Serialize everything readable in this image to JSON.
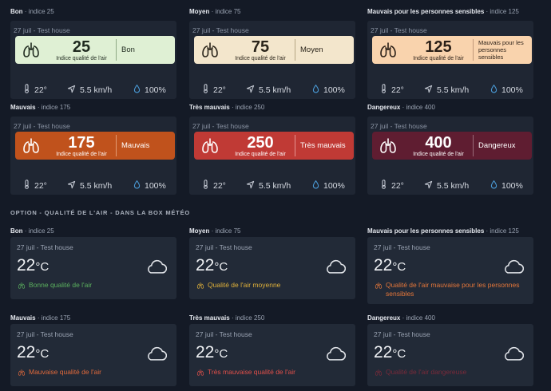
{
  "common": {
    "date": "27 juil - Test house",
    "index_caption": "Indice qualité de l'air",
    "temperature": "22°",
    "wind": "5.5 km/h",
    "humidity": "100%"
  },
  "cards": [
    {
      "label": "Bon",
      "indice": "· indice 25",
      "value": "25",
      "level": "Bon",
      "bg": "#dff0d4",
      "fg": "#1f2a1f",
      "sep": "#8faa86"
    },
    {
      "label": "Moyen",
      "indice": "· indice 75",
      "value": "75",
      "level": "Moyen",
      "bg": "#f3e6cc",
      "fg": "#2a241a",
      "sep": "#b5a684"
    },
    {
      "label": "Mauvais pour les personnes sensibles",
      "indice": "· indice 125",
      "value": "125",
      "level": "Mauvais pour les personnes sensibles",
      "bg": "#f9d3ad",
      "fg": "#2a1f17",
      "sep": "#c0987a"
    },
    {
      "label": "Mauvais",
      "indice": "· indice 175",
      "value": "175",
      "level": "Mauvais",
      "bg": "#c0521c",
      "fg": "#ffffff",
      "sep": "#e39a73"
    },
    {
      "label": "Très mauvais",
      "indice": "· indice 250",
      "value": "250",
      "level": "Très mauvais",
      "bg": "#c03a35",
      "fg": "#ffffff",
      "sep": "#e69491"
    },
    {
      "label": "Dangereux",
      "indice": "· indice 400",
      "value": "400",
      "level": "Dangereux",
      "bg": "#5f1d31",
      "fg": "#ffffff",
      "sep": "#9a6b7a"
    }
  ],
  "section_title": "OPTION - QUALITÉ DE L'AIR - DANS LA BOX MÉTÉO",
  "weather_cards": [
    {
      "label": "Bon",
      "indice": "· indice 25",
      "temp": "22",
      "unit": "°C",
      "aq_text": "Bonne qualité de l'air",
      "color": "#5bb15e"
    },
    {
      "label": "Moyen",
      "indice": "· indice 75",
      "temp": "22",
      "unit": "°C",
      "aq_text": "Qualité de l'air moyenne",
      "color": "#e0b13a"
    },
    {
      "label": "Mauvais pour les personnes sensibles",
      "indice": "· indice 125",
      "temp": "22",
      "unit": "°C",
      "aq_text": "Qualité de l'air mauvaise pour les personnes sensibles",
      "color": "#e5773a"
    },
    {
      "label": "Mauvais",
      "indice": "· indice 175",
      "temp": "22",
      "unit": "°C",
      "aq_text": "Mauvaise qualité de l'air",
      "color": "#e26a3b"
    },
    {
      "label": "Très mauvais",
      "indice": "· indice 250",
      "temp": "22",
      "unit": "°C",
      "aq_text": "Très mauvaise qualité de l'air",
      "color": "#e1504a"
    },
    {
      "label": "Dangereux",
      "indice": "· indice 400",
      "temp": "22",
      "unit": "°C",
      "aq_text": "Qualité de l'air dangereuse",
      "color": "#7a2a3a"
    }
  ],
  "icons": {
    "lungs": "lungs-icon",
    "thermometer": "thermometer-icon",
    "wind": "wind-direction-icon",
    "humidity": "drop-icon",
    "cloud": "cloud-icon"
  }
}
